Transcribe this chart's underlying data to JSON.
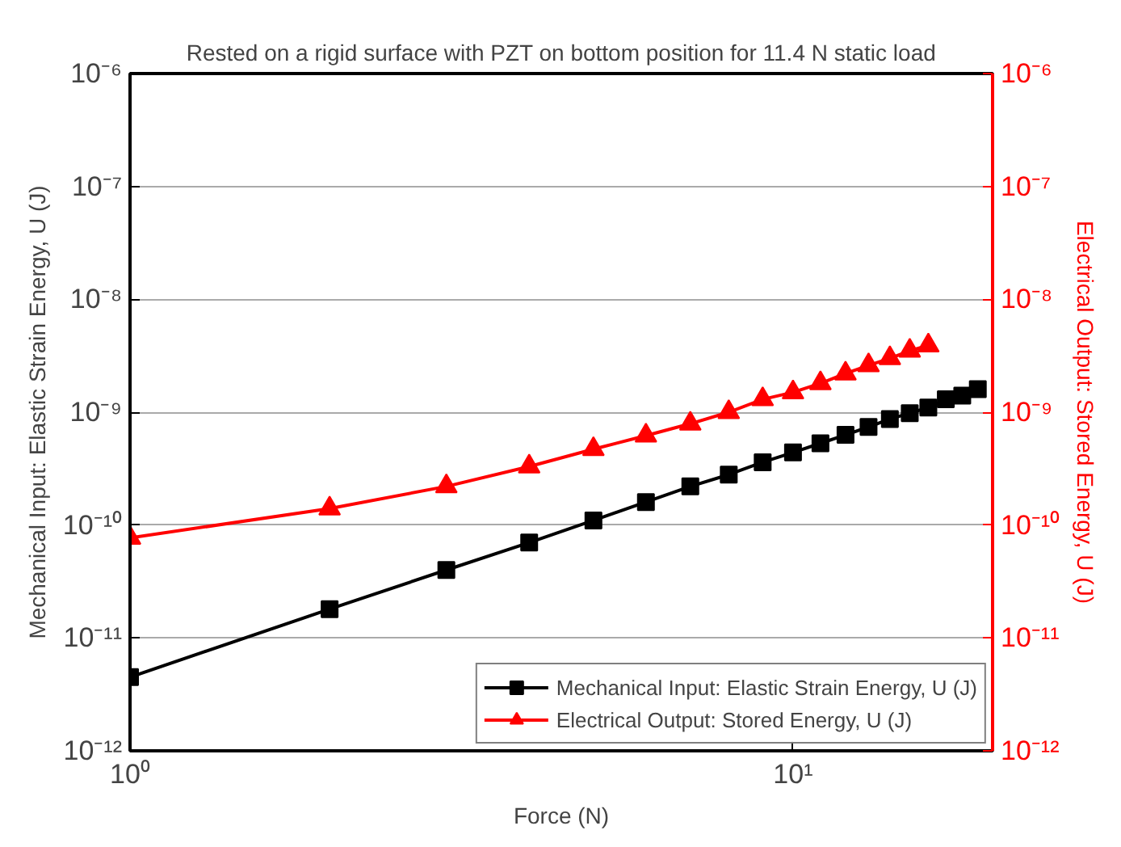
{
  "chart_data": {
    "type": "line",
    "title": "Rested on a rigid surface with PZT on bottom position for 11.4 N static load",
    "xlabel": "Force (N)",
    "ylabel": "Mechanical Input: Elastic Strain Energy, U (J)",
    "y2label": "Electrical Output: Stored Energy, U (J)",
    "log": "xy",
    "grid": "y",
    "legend": "bottom right",
    "line_style": "solid",
    "xlim": [
      1,
      20
    ],
    "xticks": [
      {
        "value": 1,
        "label": "10⁰"
      },
      {
        "value": 10,
        "label": "10¹"
      }
    ],
    "ylim": [
      1e-12,
      1e-06
    ],
    "yticks": [
      {
        "value": 1e-12,
        "label": "10⁻¹²"
      },
      {
        "value": 1e-11,
        "label": "10⁻¹¹"
      },
      {
        "value": 1e-10,
        "label": "10⁻¹⁰"
      },
      {
        "value": 1e-09,
        "label": "10⁻⁹"
      },
      {
        "value": 1e-08,
        "label": "10⁻⁸"
      },
      {
        "value": 1e-07,
        "label": "10⁻⁷"
      },
      {
        "value": 1e-06,
        "label": "10⁻⁶"
      }
    ],
    "series": [
      {
        "name": "Mechanical Input: Elastic Strain Energy, U (J)",
        "color": "#000000",
        "marker": "square",
        "x": [
          1,
          2,
          3,
          4,
          5,
          6,
          7,
          8,
          9,
          10,
          11,
          12,
          13,
          14,
          15,
          16,
          17,
          18,
          19
        ],
        "values": [
          4.5e-12,
          1.8e-11,
          4e-11,
          7e-11,
          1.1e-10,
          1.6e-10,
          2.2e-10,
          2.8e-10,
          3.6e-10,
          4.4e-10,
          5.3e-10,
          6.3e-10,
          7.4e-10,
          8.7e-10,
          9.8e-10,
          1.1e-09,
          1.3e-09,
          1.4e-09,
          1.6e-09
        ]
      },
      {
        "name": "Electrical Output: Stored Energy, U (J)",
        "color": "#ff0000",
        "marker": "triangle",
        "x": [
          1,
          2,
          3,
          4,
          5,
          6,
          7,
          8,
          9,
          10,
          11,
          12,
          13,
          14,
          15,
          16
        ],
        "values": [
          7.7e-11,
          1.4e-10,
          2.2e-10,
          3.3e-10,
          4.7e-10,
          6.2e-10,
          7.9e-10,
          1e-09,
          1.3e-09,
          1.5e-09,
          1.8e-09,
          2.2e-09,
          2.6e-09,
          3e-09,
          3.5e-09,
          3.9e-09
        ]
      }
    ]
  }
}
